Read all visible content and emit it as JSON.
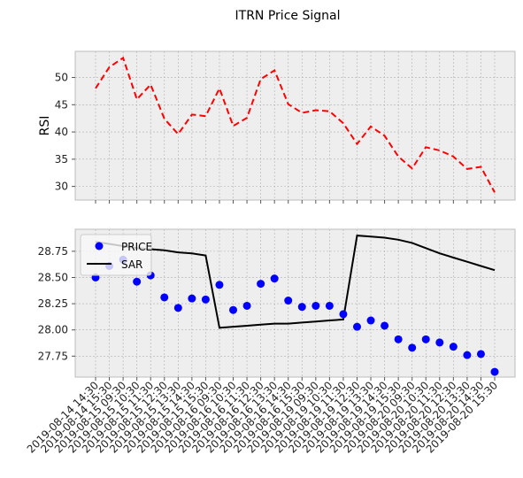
{
  "chart_data": {
    "title": "ITRN Price Signal",
    "x": [
      "2019-08-14 14:30",
      "2019-08-14 15:30",
      "2019-08-15 09:30",
      "2019-08-15 10:30",
      "2019-08-15 11:30",
      "2019-08-15 12:30",
      "2019-08-15 13:30",
      "2019-08-15 14:30",
      "2019-08-15 15:30",
      "2019-08-16 09:30",
      "2019-08-16 10:30",
      "2019-08-16 11:30",
      "2019-08-16 12:30",
      "2019-08-16 13:30",
      "2019-08-16 14:30",
      "2019-08-16 15:30",
      "2019-08-19 09:30",
      "2019-08-19 10:30",
      "2019-08-19 11:30",
      "2019-08-19 12:30",
      "2019-08-19 13:30",
      "2019-08-19 14:30",
      "2019-08-19 15:30",
      "2019-08-20 09:30",
      "2019-08-20 10:30",
      "2019-08-20 11:30",
      "2019-08-20 12:30",
      "2019-08-20 13:30",
      "2019-08-20 14:30",
      "2019-08-20 15:30"
    ],
    "panels": [
      {
        "type": "line",
        "ylabel": "RSI",
        "ylim": [
          27.5,
          54.8
        ],
        "yticks": [
          30,
          35,
          40,
          45,
          50
        ],
        "grid": true,
        "series": [
          {
            "name": "RSI",
            "color": "#ff0000",
            "style": "dashed",
            "values": [
              48.0,
              51.9,
              53.6,
              46.0,
              48.7,
              42.4,
              39.6,
              43.2,
              42.9,
              48.0,
              41.1,
              42.6,
              49.7,
              51.3,
              45.1,
              43.5,
              44.0,
              43.8,
              41.6,
              37.8,
              41.0,
              39.3,
              35.5,
              33.3,
              37.2,
              36.6,
              35.5,
              33.2,
              33.6,
              28.9
            ]
          }
        ]
      },
      {
        "type": "scatter+line",
        "ylim": [
          27.55,
          28.96
        ],
        "yticks": [
          27.75,
          28.0,
          28.25,
          28.5,
          28.75
        ],
        "grid": true,
        "legend": "top-left",
        "series": [
          {
            "name": "PRICE",
            "color": "#0000ff",
            "style": "markers",
            "values": [
              28.5,
              28.61,
              28.67,
              28.46,
              28.52,
              28.31,
              28.21,
              28.3,
              28.29,
              28.43,
              28.19,
              28.23,
              28.44,
              28.49,
              28.28,
              28.22,
              28.23,
              28.23,
              28.15,
              28.03,
              28.09,
              28.04,
              27.91,
              27.83,
              27.91,
              27.88,
              27.84,
              27.76,
              27.77,
              27.6
            ]
          },
          {
            "name": "SAR",
            "color": "#000000",
            "style": "solid",
            "values": [
              28.84,
              28.82,
              28.8,
              28.78,
              28.77,
              28.76,
              28.74,
              28.73,
              28.71,
              28.02,
              28.03,
              28.04,
              28.05,
              28.06,
              28.06,
              28.07,
              28.08,
              28.09,
              28.1,
              28.9,
              28.89,
              28.88,
              28.86,
              28.83,
              28.78,
              28.73,
              28.69,
              28.65,
              28.61,
              28.57
            ]
          }
        ]
      }
    ]
  }
}
